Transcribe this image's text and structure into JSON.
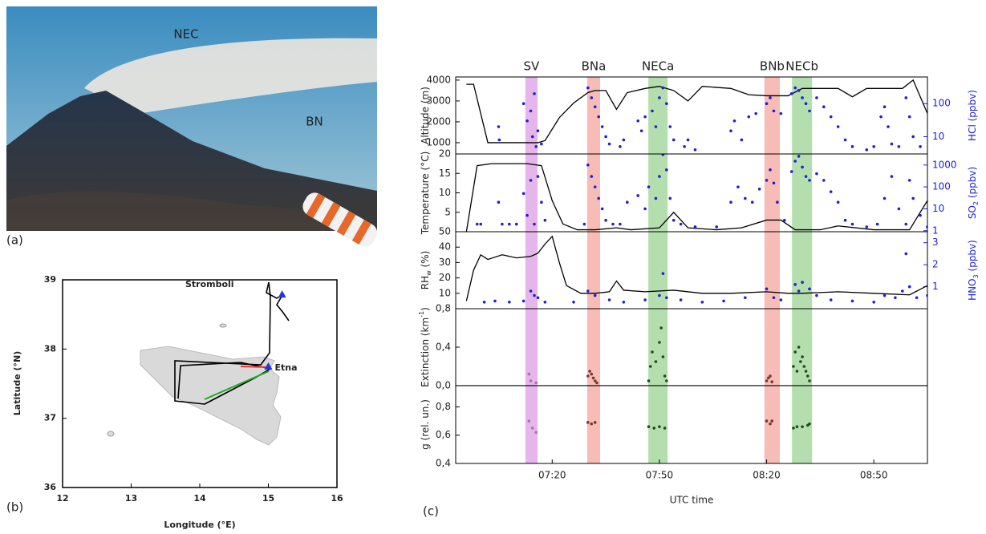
{
  "photo": {
    "label": "(a)",
    "annotations": [
      "NEC",
      "BN"
    ]
  },
  "map": {
    "label": "(b)",
    "xlabel": "Longitude (°E)",
    "ylabel": "Latitude (°N)",
    "xlim": [
      12,
      16
    ],
    "xticks": [
      12,
      13,
      14,
      15,
      16
    ],
    "ylim": [
      36,
      39
    ],
    "yticks": [
      36,
      37,
      38,
      39
    ],
    "places": [
      {
        "name": "Stromboli",
        "lon": 15.2,
        "lat": 38.79,
        "label_side": "left"
      },
      {
        "name": "Etna",
        "lon": 15.0,
        "lat": 37.75,
        "label_side": "right"
      }
    ]
  },
  "chart_data": {
    "type": "multipanel",
    "label": "(c)",
    "xlabel": "UTC time",
    "xlim": [
      413,
      545
    ],
    "xticks": [
      {
        "value": 440,
        "label": "07:20"
      },
      {
        "value": 470,
        "label": "07:50"
      },
      {
        "value": 500,
        "label": "08:20"
      },
      {
        "value": 530,
        "label": "08:50"
      }
    ],
    "events": [
      {
        "name": "SV",
        "start": 432.5,
        "end": 435.9,
        "color": "#e0a8e8"
      },
      {
        "name": "BNa",
        "start": 449.8,
        "end": 453.4,
        "color": "#f4b0a8"
      },
      {
        "name": "NECa",
        "start": 466.9,
        "end": 472.3,
        "color": "#a8d8a0"
      },
      {
        "name": "BNb",
        "start": 499.4,
        "end": 503.7,
        "color": "#f4b0a8"
      },
      {
        "name": "NECb",
        "start": 507.1,
        "end": 512.7,
        "color": "#a8d8a0"
      }
    ],
    "panels": [
      {
        "ylabel": [
          "Altitude (m)"
        ],
        "ylim": [
          460,
          4150
        ],
        "yticks": [
          1000,
          2000,
          3000,
          4000
        ],
        "y2label": [
          "HCl (ppbv)"
        ],
        "y2lim": [
          3,
          640
        ],
        "y2ticks": [
          10,
          100
        ],
        "y2log": true,
        "series": [
          {
            "style": "line",
            "color": "#000000",
            "x": [
              416,
              418,
              422,
              433,
              436,
              438,
              442,
              446,
              450,
              452,
              455,
              458,
              461,
              466,
              470,
              474,
              478,
              482,
              490,
              495,
              500,
              506,
              510,
              520,
              524,
              528,
              538,
              541,
              545
            ],
            "values": [
              3800,
              3800,
              1000,
              1000,
              1000,
              1100,
              2200,
              2900,
              3400,
              3500,
              3500,
              2600,
              3400,
              3600,
              3700,
              3500,
              3000,
              3700,
              3600,
              3300,
              3250,
              3250,
              3600,
              3600,
              3200,
              3600,
              3600,
              4000,
              2400
            ]
          },
          {
            "style": "points",
            "axis": "y2",
            "color": "#1f1fd6",
            "x": [
              425,
              425.2,
              432,
              433,
              434,
              434.5,
              435,
              435.5,
              436,
              437,
              450,
              451,
              452,
              453,
              454,
              455,
              456,
              459,
              460,
              464,
              465,
              466,
              468,
              469,
              470,
              471,
              472,
              473,
              474,
              477,
              478,
              480,
              490,
              491,
              493,
              495,
              497,
              500,
              501,
              502,
              504,
              507,
              508,
              509,
              510,
              511,
              512,
              514,
              516,
              518,
              520,
              522,
              524,
              528,
              530,
              532,
              533,
              534,
              535,
              537,
              539,
              540,
              541,
              543
            ],
            "values": [
              20,
              8,
              100,
              30,
              60,
              10,
              200,
              5,
              15,
              6,
              300,
              150,
              80,
              40,
              20,
              10,
              6,
              5,
              8,
              30,
              15,
              40,
              60,
              20,
              150,
              300,
              100,
              20,
              8,
              5,
              8,
              4,
              15,
              30,
              8,
              40,
              50,
              100,
              150,
              60,
              50,
              200,
              300,
              250,
              150,
              100,
              60,
              150,
              80,
              40,
              20,
              8,
              5,
              4,
              5,
              40,
              80,
              20,
              6,
              5,
              150,
              40,
              10,
              5
            ]
          }
        ]
      },
      {
        "ylabel": [
          "Temperature (°C)"
        ],
        "ylim": [
          0,
          20
        ],
        "yticks": [
          5,
          10,
          15,
          20
        ],
        "y2label": [
          "SO",
          "2",
          " (ppbv)"
        ],
        "y2lim": [
          0.9,
          3200
        ],
        "y2ticks": [
          1,
          10,
          100,
          1000
        ],
        "y2log": true,
        "series": [
          {
            "style": "line",
            "color": "#000000",
            "x": [
              416,
              419,
              423,
              433,
              437,
              440,
              443,
              447,
              452,
              458,
              462,
              470,
              474,
              478,
              486,
              493,
              500,
              504,
              508,
              515,
              520,
              530,
              540,
              545
            ],
            "values": [
              0,
              17,
              17.5,
              17.5,
              17,
              8,
              2,
              0.5,
              0.5,
              1,
              0.5,
              1,
              5,
              1,
              0.5,
              1,
              3,
              3,
              0.5,
              0.5,
              1.5,
              0.5,
              0.5,
              8
            ]
          },
          {
            "style": "points",
            "axis": "y2",
            "color": "#1f1fd6",
            "x": [
              419,
              420,
              425,
              426,
              428,
              430,
              432,
              433,
              434,
              435,
              436,
              437,
              438,
              449,
              450,
              451,
              452,
              453,
              454,
              455,
              457,
              459,
              461,
              464,
              466,
              467,
              469,
              470,
              471,
              472,
              473,
              474,
              476,
              480,
              486,
              490,
              492,
              494,
              496,
              498,
              500,
              501,
              502,
              503,
              505,
              507,
              508,
              509,
              510,
              511,
              512,
              514,
              516,
              518,
              520,
              522,
              524,
              528,
              531,
              533,
              535,
              537,
              539,
              540,
              541,
              543,
              545
            ],
            "values": [
              2,
              2,
              20,
              2,
              2,
              2,
              50,
              5,
              200,
              2,
              300,
              20,
              3,
              2,
              1000,
              300,
              100,
              30,
              10,
              3,
              2,
              2,
              20,
              40,
              10,
              100,
              30,
              300,
              3000,
              600,
              30,
              3,
              2,
              1.5,
              1.5,
              20,
              100,
              30,
              20,
              80,
              200,
              600,
              150,
              20,
              3,
              500,
              1500,
              2500,
              800,
              300,
              200,
              400,
              200,
              60,
              20,
              3,
              2,
              1.5,
              2,
              30,
              300,
              10,
              2,
              200,
              30,
              5,
              1.5
            ]
          }
        ]
      },
      {
        "ylabel": [
          "RH",
          "w",
          " (%)"
        ],
        "ylabel_script": "sub",
        "ylim": [
          0,
          50
        ],
        "yticks": [
          10,
          20,
          30,
          40,
          50
        ],
        "y2label": [
          "HNO",
          "3",
          " (ppbv)"
        ],
        "y2lim": [
          0,
          3.5
        ],
        "y2ticks": [
          1,
          2,
          3
        ],
        "series": [
          {
            "style": "line",
            "color": "#000000",
            "x": [
              416,
              418,
              420,
              422,
              426,
              430,
              434,
              436,
              438,
              440,
              442,
              444,
              448,
              452,
              456,
              458,
              460,
              466,
              474,
              482,
              490,
              500,
              506,
              510,
              520,
              530,
              540,
              545
            ],
            "values": [
              5,
              25,
              35,
              32,
              35,
              33,
              34,
              36,
              42,
              47,
              30,
              15,
              10,
              10,
              11,
              18,
              12,
              11,
              12,
              10,
              10,
              11,
              10,
              10,
              11,
              10,
              9,
              15
            ]
          },
          {
            "style": "points",
            "axis": "y2",
            "color": "#1f1fd6",
            "x": [
              421,
              424,
              428,
              432,
              434,
              435,
              436,
              438,
              446,
              450,
              452,
              456,
              460,
              466,
              470,
              471,
              472,
              476,
              482,
              488,
              494,
              500,
              502,
              504,
              508,
              509,
              510,
              512,
              514,
              518,
              524,
              530,
              533,
              536,
              538,
              539,
              540,
              542,
              545
            ],
            "values": [
              0.3,
              0.35,
              0.3,
              0.35,
              0.8,
              0.6,
              0.5,
              0.3,
              0.3,
              0.8,
              0.6,
              0.4,
              0.3,
              0.4,
              0.6,
              1.6,
              0.5,
              0.4,
              0.3,
              0.35,
              0.5,
              0.9,
              0.5,
              0.4,
              1.1,
              0.8,
              1.2,
              0.9,
              0.6,
              0.4,
              0.35,
              0.3,
              0.6,
              0.5,
              0.8,
              2.5,
              1.0,
              0.5,
              0.6
            ]
          }
        ]
      },
      {
        "ylabel": [
          "Extinction (km",
          "-1",
          ")"
        ],
        "ylabel_script": "super",
        "ylim": [
          0,
          0.8
        ],
        "yticks": [
          {
            "value": 0,
            "label": "0,0"
          },
          {
            "value": 0.4,
            "label": "0,4"
          },
          {
            "value": 0.8,
            "label": "0,8"
          }
        ],
        "series": [
          {
            "style": "line",
            "color": "#000000",
            "x": [
              413,
              545
            ],
            "values": [
              0,
              0
            ]
          },
          {
            "style": "points",
            "color": "#b070b0",
            "x": [
              433.5,
              434,
              435.5
            ],
            "values": [
              0.12,
              0.05,
              0.03
            ]
          },
          {
            "style": "points",
            "color": "#7a3a2a",
            "x": [
              450,
              450.5,
              451,
              451.5,
              452,
              452.5
            ],
            "values": [
              0.1,
              0.15,
              0.12,
              0.08,
              0.05,
              0.03
            ]
          },
          {
            "style": "points",
            "color": "#1a4d1a",
            "x": [
              467,
              467.5,
              468,
              469,
              470,
              470.5,
              471,
              471.5,
              472
            ],
            "values": [
              0.05,
              0.2,
              0.35,
              0.25,
              0.45,
              0.6,
              0.3,
              0.1,
              0.05
            ]
          },
          {
            "style": "points",
            "color": "#7a3a2a",
            "x": [
              500,
              500.5,
              501,
              501.5
            ],
            "values": [
              0.05,
              0.08,
              0.1,
              0.04
            ]
          },
          {
            "style": "points",
            "color": "#1a4d1a",
            "x": [
              507.5,
              508,
              508.5,
              509,
              509.5,
              510,
              510.5,
              511,
              511.5,
              512
            ],
            "values": [
              0.2,
              0.35,
              0.15,
              0.4,
              0.25,
              0.3,
              0.2,
              0.15,
              0.1,
              0.05
            ]
          }
        ]
      },
      {
        "ylabel": [
          "g (rel. un.)"
        ],
        "ylim": [
          0.4,
          0.95
        ],
        "yticks": [
          {
            "value": 0.4,
            "label": "0,4"
          },
          {
            "value": 0.6,
            "label": "0,6"
          },
          {
            "value": 0.8,
            "label": "0,8"
          }
        ],
        "series": [
          {
            "style": "points",
            "color": "#b070b0",
            "x": [
              433.5,
              434.5,
              435.5
            ],
            "values": [
              0.7,
              0.65,
              0.62
            ]
          },
          {
            "style": "points",
            "color": "#7a3a2a",
            "x": [
              450,
              451,
              452
            ],
            "values": [
              0.69,
              0.68,
              0.69
            ]
          },
          {
            "style": "points",
            "color": "#1a4d1a",
            "x": [
              467,
              468.5,
              470,
              471.5
            ],
            "values": [
              0.66,
              0.65,
              0.66,
              0.65
            ]
          },
          {
            "style": "points",
            "color": "#7a3a2a",
            "x": [
              500,
              501,
              501.5
            ],
            "values": [
              0.7,
              0.68,
              0.7
            ]
          },
          {
            "style": "points",
            "color": "#1a4d1a",
            "x": [
              507.5,
              508.5,
              510,
              511.5,
              512
            ],
            "values": [
              0.65,
              0.66,
              0.66,
              0.67,
              0.68
            ]
          }
        ]
      }
    ]
  }
}
